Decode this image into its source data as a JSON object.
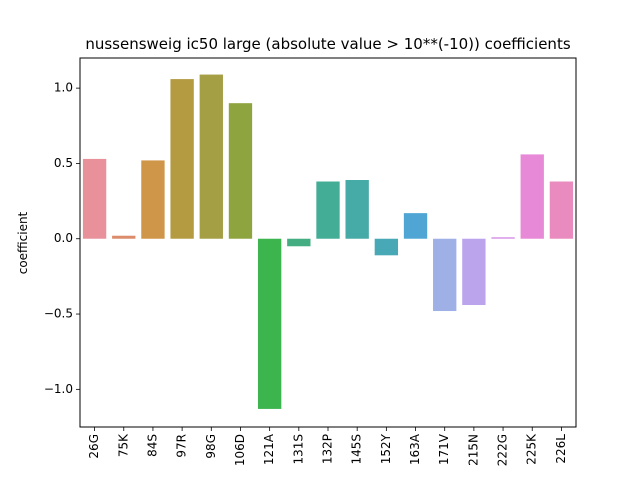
{
  "chart_data": {
    "type": "bar",
    "title": "nussensweig ic50 large (absolute value > 10**(-10)) coefficients",
    "xlabel": "",
    "ylabel": "coefficient",
    "ylim": [
      -1.25,
      1.2
    ],
    "yticks": [
      -1.0,
      -0.5,
      0.0,
      0.5,
      1.0
    ],
    "ytick_labels": [
      "−1.0",
      "−0.5",
      "0.0",
      "0.5",
      "1.0"
    ],
    "grid": false,
    "categories": [
      "26G",
      "75K",
      "84S",
      "97R",
      "98G",
      "106D",
      "121A",
      "131S",
      "132P",
      "145S",
      "152Y",
      "163A",
      "171V",
      "215N",
      "222G",
      "225K",
      "226L"
    ],
    "values": [
      0.53,
      0.02,
      0.52,
      1.06,
      1.09,
      0.9,
      -1.13,
      -0.05,
      0.38,
      0.39,
      -0.11,
      0.17,
      -0.48,
      -0.44,
      0.01,
      0.56,
      0.38
    ],
    "colors": [
      "#e8919b",
      "#dc8c6b",
      "#cf9548",
      "#b49b42",
      "#a49e45",
      "#8da43f",
      "#3db54f",
      "#45ad82",
      "#43ad95",
      "#46aaa6",
      "#48a8b5",
      "#4fa6d4",
      "#9fb0e6",
      "#bba4ec",
      "#d796e8",
      "#e889d8",
      "#e98bbf"
    ]
  }
}
